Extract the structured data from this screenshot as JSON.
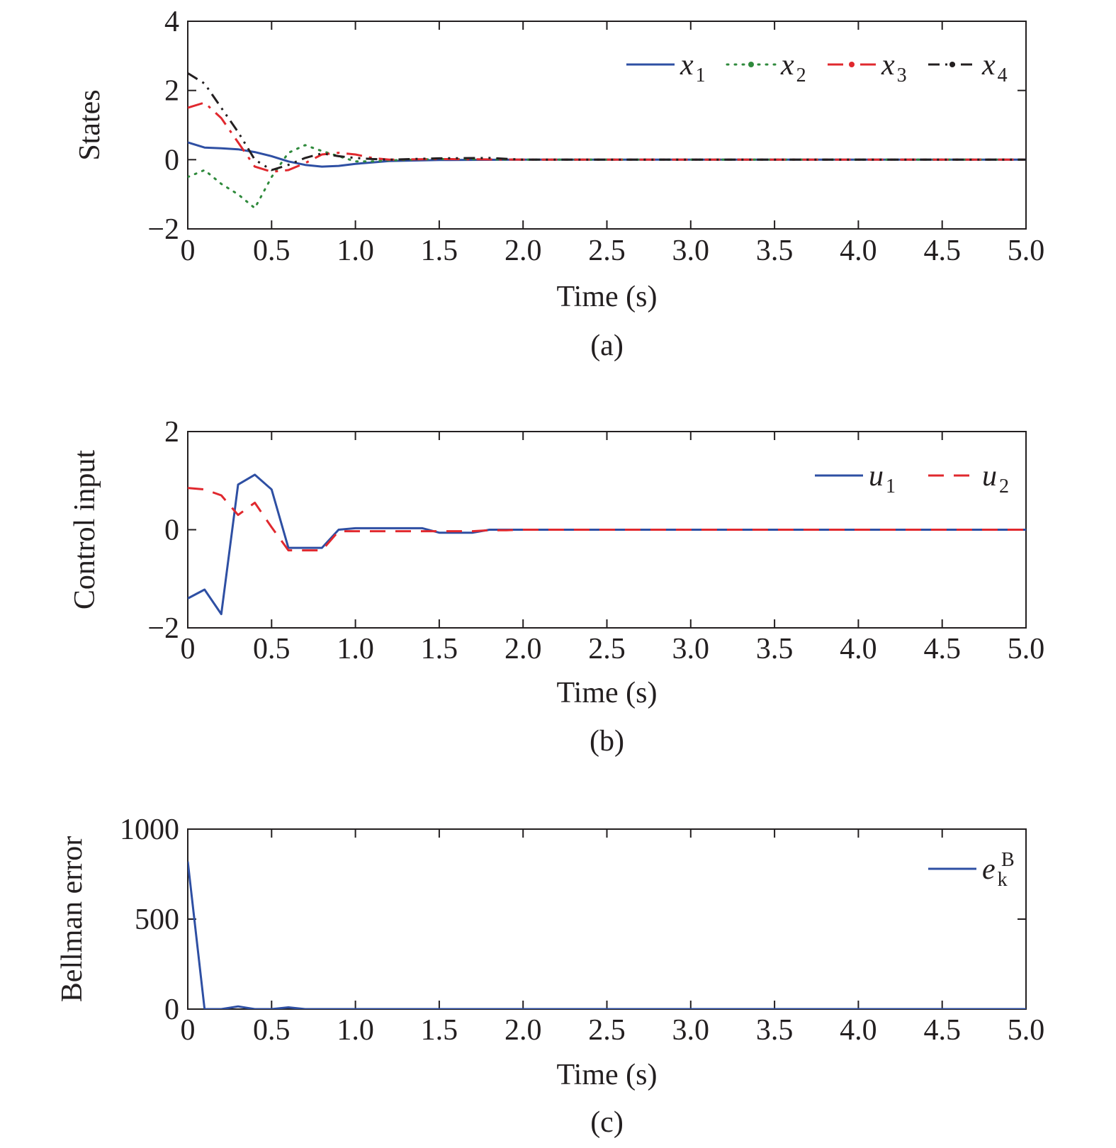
{
  "colors": {
    "x1": "#2e4fa3",
    "x2": "#2f8a3c",
    "x3": "#e0282e",
    "x4": "#231f20",
    "u1": "#2e4fa3",
    "u2": "#e0282e",
    "ek": "#2e4fa3",
    "axes": "#231f20"
  },
  "chart_data": [
    {
      "type": "line",
      "caption": "(a)",
      "xlabel": "Time (s)",
      "ylabel": "States",
      "xlim": [
        0,
        5
      ],
      "ylim": [
        -2,
        4
      ],
      "xticks": [
        "0",
        "0.5",
        "1.0",
        "1.5",
        "2.0",
        "2.5",
        "3.0",
        "3.5",
        "4.0",
        "4.5",
        "5.0"
      ],
      "yticks": [
        "−2",
        "0",
        "2",
        "4"
      ],
      "legend_position": "top-right",
      "series": [
        {
          "name": "x1",
          "legend_main": "x",
          "legend_sub": "1",
          "style": "solid",
          "x": [
            0,
            0.1,
            0.2,
            0.3,
            0.4,
            0.5,
            0.6,
            0.7,
            0.8,
            0.9,
            1.0,
            1.1,
            1.2,
            1.5,
            2.0,
            5.0
          ],
          "y": [
            0.5,
            0.35,
            0.33,
            0.3,
            0.22,
            0.1,
            -0.05,
            -0.15,
            -0.2,
            -0.18,
            -0.12,
            -0.08,
            -0.04,
            -0.01,
            0,
            0
          ]
        },
        {
          "name": "x2",
          "legend_main": "x",
          "legend_sub": "2",
          "style": "dotted",
          "x": [
            0,
            0.1,
            0.2,
            0.3,
            0.4,
            0.5,
            0.6,
            0.7,
            0.8,
            0.9,
            1.0,
            1.1,
            1.2,
            1.5,
            2.0,
            5.0
          ],
          "y": [
            -0.5,
            -0.3,
            -0.7,
            -1.0,
            -1.4,
            -0.5,
            0.2,
            0.42,
            0.25,
            0.1,
            -0.05,
            -0.05,
            -0.02,
            0.02,
            0,
            0
          ]
        },
        {
          "name": "x3",
          "legend_main": "x",
          "legend_sub": "3",
          "style": "dashdot",
          "x": [
            0,
            0.1,
            0.2,
            0.3,
            0.4,
            0.5,
            0.6,
            0.7,
            0.8,
            0.9,
            1.0,
            1.1,
            1.2,
            1.5,
            2.0,
            5.0
          ],
          "y": [
            1.5,
            1.65,
            1.2,
            0.5,
            -0.2,
            -0.35,
            -0.3,
            -0.1,
            0.15,
            0.2,
            0.15,
            0.05,
            0.0,
            0.02,
            0,
            0
          ]
        },
        {
          "name": "x4",
          "legend_main": "x",
          "legend_sub": "4",
          "style": "dashdotdot",
          "x": [
            0,
            0.1,
            0.2,
            0.3,
            0.4,
            0.5,
            0.6,
            0.7,
            0.8,
            0.9,
            1.0,
            1.1,
            1.2,
            1.5,
            1.8,
            2.0,
            5.0
          ],
          "y": [
            2.5,
            2.2,
            1.5,
            0.8,
            0.0,
            -0.3,
            -0.15,
            0.05,
            0.18,
            0.1,
            0.05,
            0.02,
            0.0,
            0.04,
            0.05,
            0,
            0
          ]
        }
      ]
    },
    {
      "type": "line",
      "caption": "(b)",
      "xlabel": "Time (s)",
      "ylabel": "Control input",
      "xlim": [
        0,
        5
      ],
      "ylim": [
        -2,
        2
      ],
      "xticks": [
        "0",
        "0.5",
        "1.0",
        "1.5",
        "2.0",
        "2.5",
        "3.0",
        "3.5",
        "4.0",
        "4.5",
        "5.0"
      ],
      "yticks": [
        "−2",
        "0",
        "2"
      ],
      "legend_position": "top-right",
      "series": [
        {
          "name": "u1",
          "legend_main": "u",
          "legend_sub": "1",
          "style": "solid",
          "x": [
            0,
            0.1,
            0.2,
            0.3,
            0.4,
            0.5,
            0.6,
            0.7,
            0.8,
            0.9,
            1.0,
            1.1,
            1.2,
            1.3,
            1.4,
            1.5,
            1.6,
            1.7,
            1.8,
            1.9,
            2.0,
            2.1,
            5.0
          ],
          "y": [
            -1.4,
            -1.22,
            -1.72,
            0.92,
            1.12,
            0.82,
            -0.37,
            -0.37,
            -0.37,
            0.0,
            0.03,
            0.03,
            0.03,
            0.03,
            0.03,
            -0.06,
            -0.06,
            -0.06,
            0.0,
            0.0,
            0.0,
            0.0,
            0.0
          ]
        },
        {
          "name": "u2",
          "legend_main": "u",
          "legend_sub": "2",
          "style": "dashed",
          "x": [
            0,
            0.1,
            0.2,
            0.3,
            0.4,
            0.5,
            0.6,
            0.7,
            0.8,
            0.9,
            1.0,
            1.1,
            1.2,
            1.3,
            1.4,
            1.5,
            1.6,
            1.7,
            1.8,
            1.9,
            2.0,
            5.0
          ],
          "y": [
            0.85,
            0.82,
            0.7,
            0.3,
            0.55,
            0.05,
            -0.42,
            -0.42,
            -0.42,
            -0.03,
            -0.03,
            -0.03,
            -0.03,
            -0.03,
            -0.03,
            -0.03,
            -0.03,
            -0.03,
            -0.01,
            -0.01,
            0.0,
            0.0
          ]
        }
      ]
    },
    {
      "type": "line",
      "caption": "(c)",
      "xlabel": "Time (s)",
      "ylabel": "Bellman error",
      "xlim": [
        0,
        5
      ],
      "ylim": [
        0,
        1000
      ],
      "xticks": [
        "0",
        "0.5",
        "1.0",
        "1.5",
        "2.0",
        "2.5",
        "3.0",
        "3.5",
        "4.0",
        "4.5",
        "5.0"
      ],
      "yticks": [
        "0",
        "500",
        "1000"
      ],
      "legend_position": "top-right",
      "series": [
        {
          "name": "e_k^B",
          "legend_main": "e",
          "legend_sub": "k",
          "legend_sup": "B",
          "style": "solid",
          "x": [
            0,
            0.1,
            0.2,
            0.3,
            0.4,
            0.5,
            0.6,
            0.7,
            0.8,
            1.0,
            5.0
          ],
          "y": [
            820,
            0,
            0,
            15,
            0,
            0,
            10,
            0,
            0,
            0,
            0
          ]
        }
      ]
    }
  ]
}
